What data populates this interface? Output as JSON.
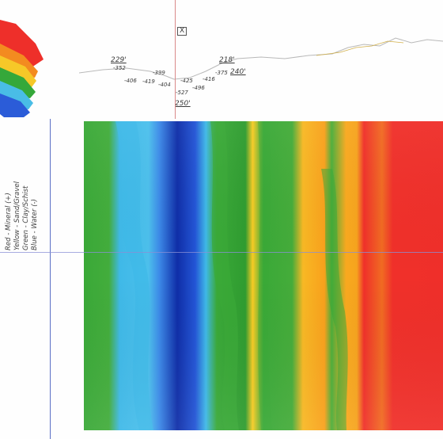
{
  "profile": {
    "top_labels": [
      {
        "id": "l1",
        "text": "229'"
      },
      {
        "id": "l2",
        "text": "-352"
      },
      {
        "id": "l3",
        "text": "-406"
      },
      {
        "id": "l4",
        "text": "-419"
      },
      {
        "id": "l5",
        "text": "-399"
      },
      {
        "id": "l6",
        "text": "-404"
      },
      {
        "id": "l7",
        "text": "-425"
      },
      {
        "id": "l8",
        "text": "-527"
      },
      {
        "id": "l9",
        "text": "-496"
      },
      {
        "id": "l10",
        "text": "-416"
      },
      {
        "id": "l11",
        "text": "-375"
      },
      {
        "id": "l12",
        "text": "240'"
      },
      {
        "id": "l13",
        "text": "218'"
      },
      {
        "id": "l14",
        "text": "250'"
      }
    ],
    "marker_symbol": "X"
  },
  "legend": {
    "lines": [
      "Red - Mineral (+)",
      "Yellow - Sand/Gravel",
      "Green - Clay/Schist",
      "Blue - Water (-)"
    ]
  },
  "colors": {
    "red": "#f0302a",
    "orange": "#f9a11c",
    "yellow": "#f8cc24",
    "green": "#3aa938",
    "cyan": "#3fb9e8",
    "blue": "#2355d6",
    "deep_blue": "#0f2ea8"
  }
}
